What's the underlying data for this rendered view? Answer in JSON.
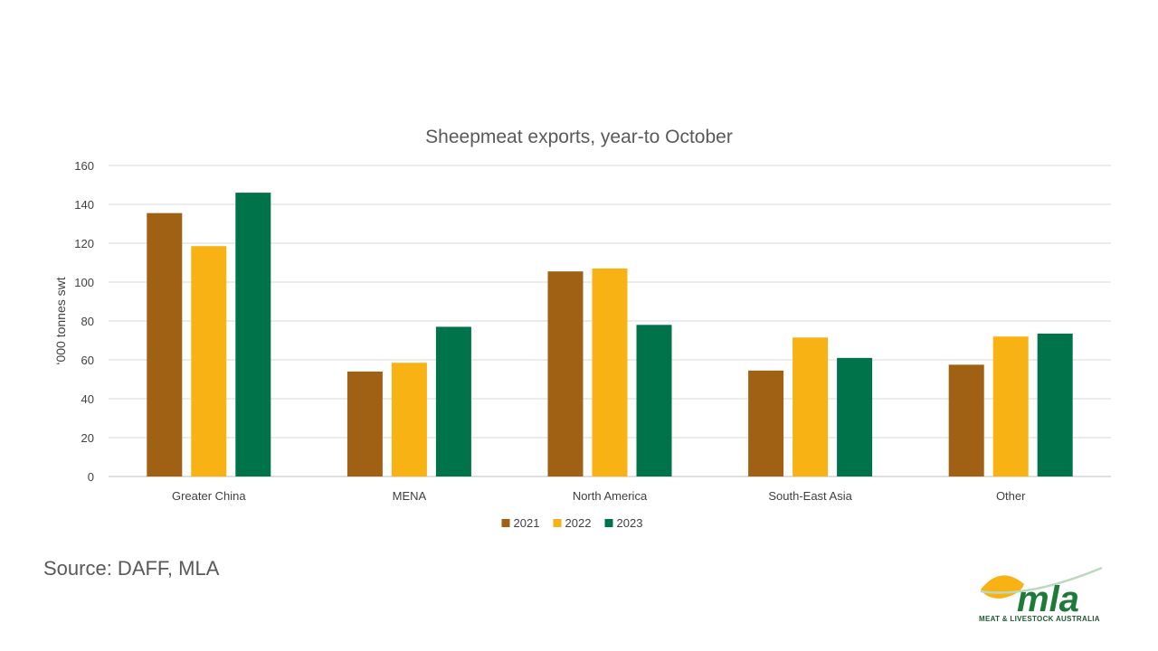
{
  "chart_data": {
    "type": "bar",
    "title": "Sheepmeat exports, year-to October",
    "ylabel": "‘000 tonnes swt",
    "xlabel": "",
    "ylim": [
      0,
      160
    ],
    "yticks": [
      0,
      20,
      40,
      60,
      80,
      100,
      120,
      140,
      160
    ],
    "grid": true,
    "legend_position": "bottom",
    "categories": [
      "Greater China",
      "MENA",
      "North America",
      "South-East Asia",
      "Other"
    ],
    "series": [
      {
        "name": "2021",
        "color": "#a16114",
        "values": [
          135.5,
          54,
          105.5,
          54.5,
          57.5
        ]
      },
      {
        "name": "2022",
        "color": "#f8b214",
        "values": [
          118.5,
          58.5,
          107,
          71.5,
          72
        ]
      },
      {
        "name": "2023",
        "color": "#00734b",
        "values": [
          146,
          77,
          78,
          61,
          73.5
        ]
      }
    ]
  },
  "footer": {
    "source": "Source: DAFF, MLA",
    "logo_text": "mla",
    "logo_tagline": "MEAT & LIVESTOCK AUSTRALIA"
  },
  "colors": {
    "brand_green": "#1e7a3a",
    "brand_yellow": "#f8b214"
  }
}
